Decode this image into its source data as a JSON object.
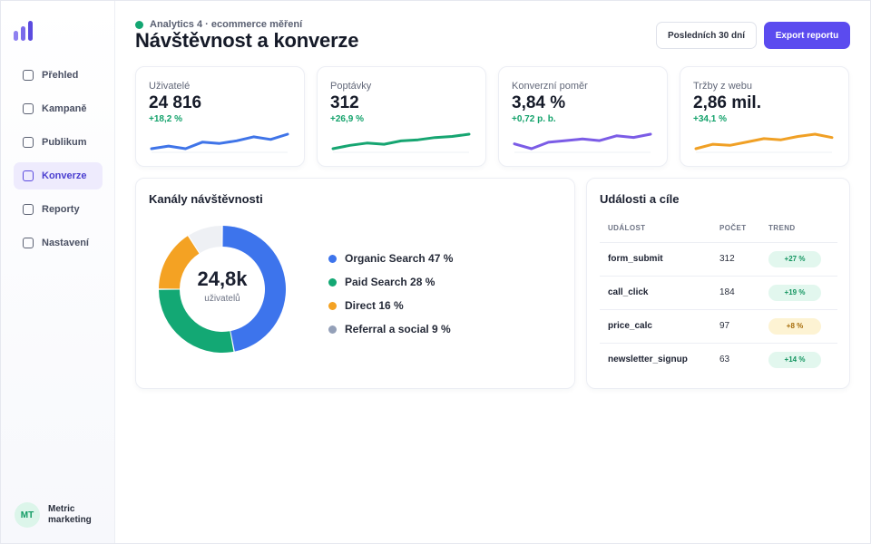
{
  "sidebar": {
    "items": [
      {
        "label": "Přehled"
      },
      {
        "label": "Kampaně"
      },
      {
        "label": "Publikum"
      },
      {
        "label": "Konverze",
        "active": true
      },
      {
        "label": "Reporty"
      },
      {
        "label": "Nastavení"
      }
    ],
    "profile": {
      "initials": "MT",
      "name": "Metric marketing"
    }
  },
  "header": {
    "eyebrow": "Analytics 4 · ecommerce měření",
    "title": "Návštěvnost a konverze",
    "range_button": "Posledních 30 dní",
    "export_button": "Export reportu"
  },
  "kpis": [
    {
      "label": "Uživatelé",
      "value": "24 816",
      "delta": "+18,2 %",
      "color": "#3f74e8",
      "trend": [
        3,
        5,
        3,
        8,
        7,
        9,
        12,
        10,
        14
      ]
    },
    {
      "label": "Poptávky",
      "value": "312",
      "delta": "+26,9 %",
      "color": "#16a571",
      "trend": [
        2,
        5,
        7,
        6,
        9,
        10,
        12,
        13,
        15
      ]
    },
    {
      "label": "Konverzní poměr",
      "value": "3,84 %",
      "delta": "+0,72 p. b.",
      "color": "#7b5ce6",
      "trend": [
        8,
        5,
        9,
        10,
        11,
        10,
        13,
        12,
        14
      ]
    },
    {
      "label": "Tržby z webu",
      "value": "2,86 mil.",
      "delta": "+34,1 %",
      "color": "#f0a025",
      "trend": [
        3,
        7,
        6,
        9,
        12,
        11,
        14,
        16,
        13
      ]
    }
  ],
  "channels": {
    "title": "Kanály návštěvnosti",
    "center_value": "24,8k",
    "center_label": "uživatelů",
    "chart_data": {
      "type": "pie",
      "categories": [
        "Organic Search",
        "Paid Search",
        "Direct",
        "Referral a social"
      ],
      "values": [
        47,
        28,
        16,
        9
      ],
      "colors": [
        "#3d74ec",
        "#13a874",
        "#f4a223",
        "#eef0f4"
      ]
    },
    "legend": [
      {
        "label": "Organic Search 47 %",
        "color": "#3d74ec"
      },
      {
        "label": "Paid Search 28 %",
        "color": "#13a874"
      },
      {
        "label": "Direct 16 %",
        "color": "#f4a223"
      },
      {
        "label": "Referral a social 9 %",
        "color": "#94a0b8"
      }
    ]
  },
  "events": {
    "title": "Události a cíle",
    "columns": [
      "UDÁLOST",
      "POČET",
      "TREND"
    ],
    "rows": [
      {
        "event": "form_submit",
        "count": "312",
        "trend": "+27 %",
        "tone": "up"
      },
      {
        "event": "call_click",
        "count": "184",
        "trend": "+19 %",
        "tone": "up"
      },
      {
        "event": "price_calc",
        "count": "97",
        "trend": "+8 %",
        "tone": "warn"
      },
      {
        "event": "newsletter_signup",
        "count": "63",
        "trend": "+14 %",
        "tone": "up"
      }
    ]
  }
}
